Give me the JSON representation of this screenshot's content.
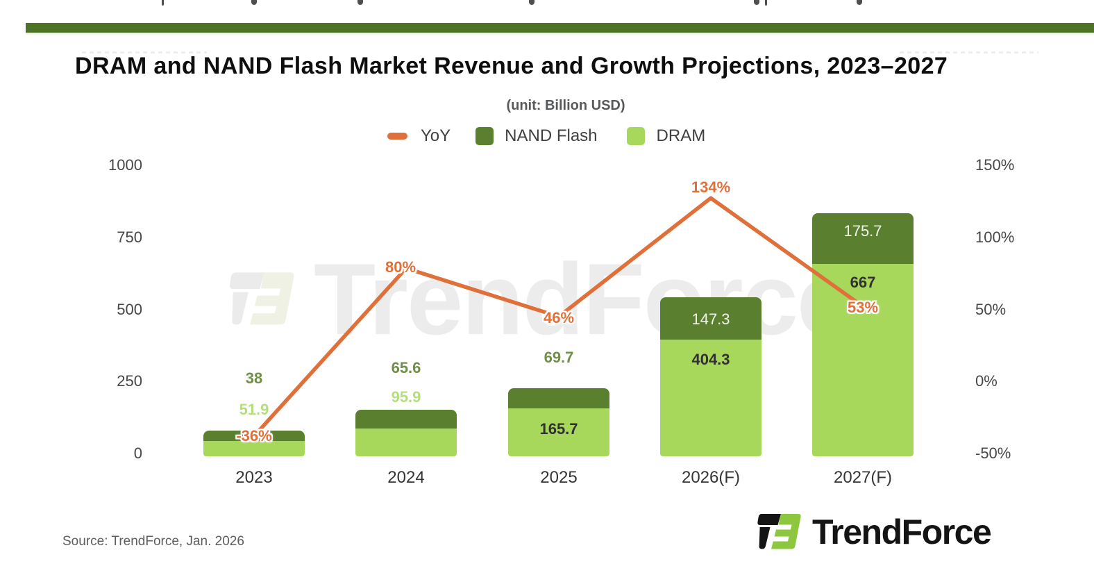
{
  "page": {
    "title": "DRAM and NAND Flash Market Revenue and Growth Projections, 2023–2027",
    "unit_note": "(unit: Billion USD)",
    "source": "Source: TrendForce, Jan. 2026",
    "brand": "TrendForce",
    "watermark": "TrendForce"
  },
  "legend": {
    "items": [
      {
        "label": "YoY",
        "swatch": "line",
        "color": "#e0703a"
      },
      {
        "label": "NAND Flash",
        "swatch": "box",
        "color": "#5a7f2e"
      },
      {
        "label": "DRAM",
        "swatch": "box",
        "color": "#a7d75b"
      }
    ]
  },
  "colors": {
    "dram": "#a7d75b",
    "nand": "#5a7f2e",
    "yoy_line": "#e0703a",
    "top_strip": "#4c7326",
    "logo_green": "#8dc63f",
    "label_green_dark": "#6f8f48",
    "label_green_light": "#b5de80"
  },
  "chart_data": {
    "type": "bar",
    "subtype": "stacked-bars-with-line",
    "title": "DRAM and NAND Flash Market Revenue and Growth Projections, 2023–2027",
    "subtitle": "(unit: Billion USD)",
    "categories": [
      "2023",
      "2024",
      "2025",
      "2026(F)",
      "2027(F)"
    ],
    "series": [
      {
        "name": "DRAM",
        "type": "bar",
        "stack": "revenue",
        "color": "#a7d75b",
        "values": [
          51.9,
          95.9,
          165.7,
          404.3,
          667
        ],
        "labels": [
          "51.9",
          "95.9",
          "165.7",
          "404.3",
          "667"
        ]
      },
      {
        "name": "NAND Flash",
        "type": "bar",
        "stack": "revenue",
        "color": "#5a7f2e",
        "values": [
          38,
          65.6,
          69.7,
          147.3,
          175.7
        ],
        "labels": [
          "38",
          "65.6",
          "69.7",
          "147.3",
          "175.7"
        ]
      },
      {
        "name": "YoY",
        "type": "line",
        "axis": "right",
        "color": "#e0703a",
        "values": [
          -36,
          80,
          46,
          134,
          53
        ],
        "labels": [
          "-36%",
          "80%",
          "46%",
          "134%",
          "53%"
        ]
      }
    ],
    "left_axis": {
      "ticks": [
        0,
        250,
        500,
        750,
        1000
      ],
      "tick_labels": [
        "0",
        "250",
        "500",
        "750",
        "1000"
      ],
      "range": [
        0,
        1000
      ],
      "grid": false
    },
    "right_axis": {
      "ticks": [
        -50,
        0,
        50,
        100,
        150
      ],
      "tick_labels": [
        "-50%",
        "0%",
        "50%",
        "100%",
        "150%"
      ],
      "range": [
        -50,
        150
      ]
    },
    "legend_position": "top-center"
  }
}
